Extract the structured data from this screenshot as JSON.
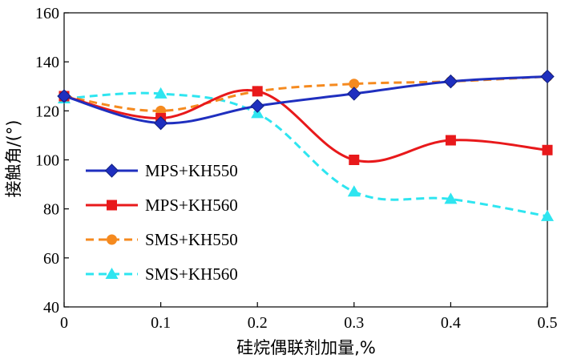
{
  "chart_data": {
    "type": "line",
    "xlabel": "硅烷偶联剂加量,%",
    "ylabel": "接触角/(°)",
    "x": [
      0,
      0.1,
      0.2,
      0.3,
      0.4,
      0.5
    ],
    "x_tick_labels": [
      "0",
      "0.1",
      "0.2",
      "0.3",
      "0.4",
      "0.5"
    ],
    "y_tick_labels": [
      "40",
      "60",
      "80",
      "100",
      "120",
      "140",
      "160"
    ],
    "xlim": [
      0,
      0.5
    ],
    "ylim": [
      40,
      160
    ],
    "y_ticks": [
      40,
      60,
      80,
      100,
      120,
      140,
      160
    ],
    "grid": false,
    "legend_position": "left",
    "series": [
      {
        "name": "MPS+KH550",
        "values": [
          126,
          115,
          122,
          127,
          132,
          134
        ],
        "color": "#1f2fbf",
        "line_style": "solid",
        "marker": "diamond"
      },
      {
        "name": "MPS+KH560",
        "values": [
          126,
          117,
          128,
          100,
          108,
          104
        ],
        "color": "#e8191b",
        "line_style": "solid",
        "marker": "square"
      },
      {
        "name": "SMS+KH550",
        "values": [
          126,
          120,
          128,
          131,
          132,
          134
        ],
        "color": "#f58a1f",
        "line_style": "dashed",
        "marker": "circle"
      },
      {
        "name": "SMS+KH560",
        "values": [
          125,
          127,
          119,
          87,
          84,
          77
        ],
        "color": "#2ee5f0",
        "line_style": "dashed",
        "marker": "triangle"
      }
    ]
  }
}
